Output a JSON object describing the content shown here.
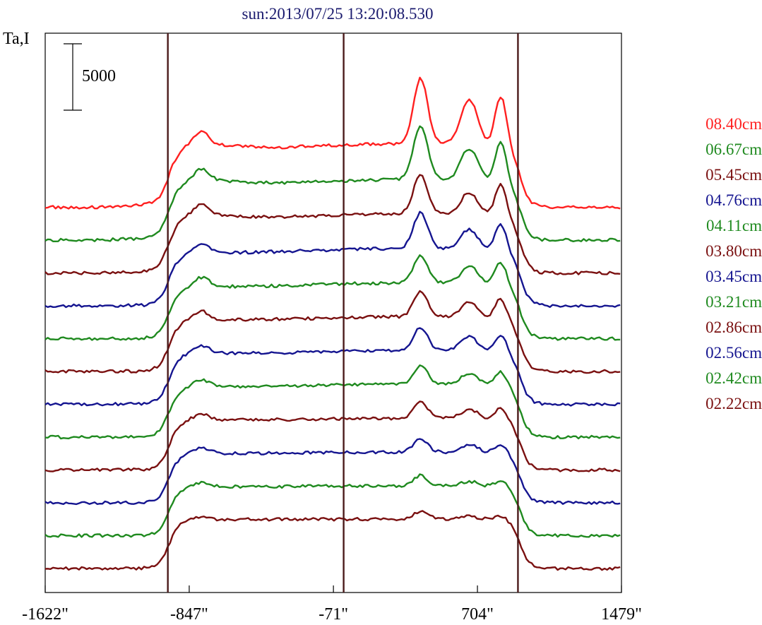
{
  "chart_data": {
    "type": "line",
    "title": "sun:2013/07/25 13:20:08.530",
    "ylabel": "Ta,I",
    "scale_bar": {
      "label": "5000",
      "value": 5000
    },
    "xlim": [
      -1622,
      1479
    ],
    "x_ticks": [
      -1622,
      -847,
      -71,
      704,
      1479
    ],
    "x_tick_labels": [
      "-1622\"",
      "-847\"",
      "-71\"",
      "704\"",
      "1479\""
    ],
    "vertical_lines": [
      -962,
      -16,
      922
    ],
    "legend_position": "right",
    "series": [
      {
        "name": "08.40cm",
        "color": "#ff2020",
        "base": 0,
        "disk": 4500,
        "peaks": [
          4900,
          3400,
          3800
        ],
        "limb": 1800
      },
      {
        "name": "06.67cm",
        "color": "#1f8a1f",
        "base": 0,
        "disk": 4300,
        "peaks": [
          4100,
          2400,
          3000
        ],
        "limb": 1600
      },
      {
        "name": "05.45cm",
        "color": "#7a1010",
        "base": 0,
        "disk": 4200,
        "peaks": [
          3000,
          1700,
          2400
        ],
        "limb": 1500
      },
      {
        "name": "04.76cm",
        "color": "#151590",
        "base": 0,
        "disk": 4100,
        "peaks": [
          2700,
          1500,
          2000
        ],
        "limb": 1300
      },
      {
        "name": "04.11cm",
        "color": "#1f8a1f",
        "base": 0,
        "disk": 4000,
        "peaks": [
          2100,
          1300,
          1700
        ],
        "limb": 1200
      },
      {
        "name": "03.80cm",
        "color": "#7a1010",
        "base": 0,
        "disk": 3950,
        "peaks": [
          1900,
          1150,
          1500
        ],
        "limb": 1100
      },
      {
        "name": "03.45cm",
        "color": "#151590",
        "base": 0,
        "disk": 3900,
        "peaks": [
          1700,
          1050,
          1300
        ],
        "limb": 1000
      },
      {
        "name": "03.21cm",
        "color": "#1f8a1f",
        "base": 0,
        "disk": 3850,
        "peaks": [
          1400,
          900,
          1100
        ],
        "limb": 900
      },
      {
        "name": "02.86cm",
        "color": "#7a1010",
        "base": 0,
        "disk": 3800,
        "peaks": [
          1200,
          700,
          900
        ],
        "limb": 800
      },
      {
        "name": "02.56cm",
        "color": "#151590",
        "base": 0,
        "disk": 3750,
        "peaks": [
          1000,
          550,
          700
        ],
        "limb": 700
      },
      {
        "name": "02.42cm",
        "color": "#1f8a1f",
        "base": 0,
        "disk": 3700,
        "peaks": [
          800,
          350,
          500
        ],
        "limb": 500
      },
      {
        "name": "02.22cm",
        "color": "#7a1010",
        "base": 0,
        "disk": 3700,
        "peaks": [
          600,
          200,
          300
        ],
        "limb": 300
      }
    ],
    "grid": false
  }
}
